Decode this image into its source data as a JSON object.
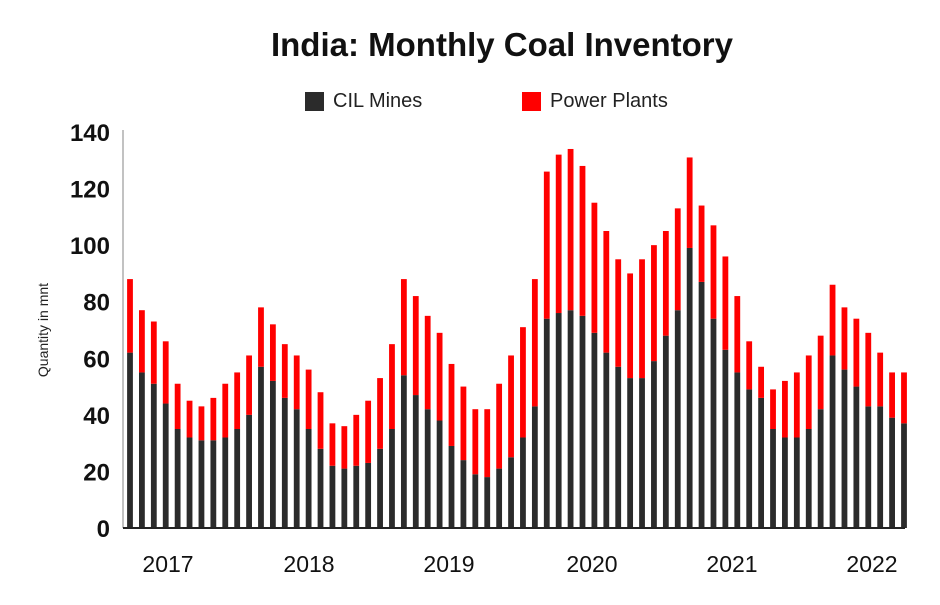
{
  "chart_data": {
    "type": "bar",
    "stacked": true,
    "title": "India: Monthly Coal Inventory",
    "ylabel": "Quantity in mnt",
    "xlabel": "",
    "ylim": [
      0,
      140
    ],
    "y_ticks": [
      "0",
      "20",
      "40",
      "60",
      "80",
      "100",
      "120",
      "140"
    ],
    "x_tick_labels": [
      "2017",
      "2018",
      "2019",
      "2020",
      "2021",
      "2022"
    ],
    "legend": [
      "CIL Mines",
      "Power Plants"
    ],
    "colors": {
      "CIL Mines": "#2b2b2b",
      "Power Plants": "#ff0000"
    },
    "categories": [
      "Jan 2017",
      "Feb 2017",
      "Mar 2017",
      "Apr 2017",
      "May 2017",
      "Jun 2017",
      "Jul 2017",
      "Aug 2017",
      "Sep 2017",
      "Oct 2017",
      "Nov 2017",
      "Dec 2017",
      "Jan 2018",
      "Feb 2018",
      "Mar 2018",
      "Apr 2018",
      "May 2018",
      "Jun 2018",
      "Jul 2018",
      "Aug 2018",
      "Sep 2018",
      "Oct 2018",
      "Nov 2018",
      "Dec 2018",
      "Jan 2019",
      "Feb 2019",
      "Mar 2019",
      "Apr 2019",
      "May 2019",
      "Jun 2019",
      "Jul 2019",
      "Aug 2019",
      "Sep 2019",
      "Oct 2019",
      "Nov 2019",
      "Dec 2019",
      "Jan 2020",
      "Feb 2020",
      "Mar 2020",
      "Apr 2020",
      "May 2020",
      "Jun 2020",
      "Jul 2020",
      "Aug 2020",
      "Sep 2020",
      "Oct 2020",
      "Nov 2020",
      "Dec 2020",
      "Jan 2021",
      "Feb 2021",
      "Mar 2021",
      "Apr 2021",
      "May 2021",
      "Jun 2021",
      "Jul 2021",
      "Aug 2021",
      "Sep 2021",
      "Oct 2021",
      "Nov 2021",
      "Dec 2021",
      "Jan 2022",
      "Feb 2022",
      "Mar 2022",
      "Apr 2022",
      "May 2022",
      "Jun 2022"
    ],
    "series": [
      {
        "name": "CIL Mines",
        "values": [
          62,
          55,
          51,
          44,
          35,
          32,
          31,
          31,
          32,
          35,
          40,
          57,
          52,
          46,
          42,
          35,
          28,
          22,
          21,
          22,
          23,
          28,
          35,
          54,
          47,
          42,
          38,
          29,
          24,
          19,
          18,
          21,
          25,
          32,
          43,
          74,
          76,
          77,
          75,
          69,
          62,
          57,
          53,
          53,
          59,
          68,
          77,
          99,
          87,
          74,
          63,
          55,
          49,
          46,
          35,
          32,
          32,
          35,
          42,
          61,
          56,
          50,
          43,
          43,
          39,
          37
        ]
      },
      {
        "name": "Power Plants",
        "values": [
          26,
          22,
          22,
          22,
          16,
          13,
          12,
          15,
          19,
          20,
          21,
          21,
          20,
          19,
          19,
          21,
          20,
          15,
          15,
          18,
          22,
          25,
          30,
          34,
          35,
          33,
          31,
          29,
          26,
          23,
          24,
          30,
          36,
          39,
          45,
          52,
          56,
          57,
          53,
          46,
          43,
          38,
          37,
          42,
          41,
          37,
          36,
          32,
          27,
          33,
          33,
          27,
          17,
          11,
          14,
          20,
          23,
          26,
          26,
          25,
          22,
          24,
          26,
          19,
          16,
          18
        ]
      }
    ]
  }
}
